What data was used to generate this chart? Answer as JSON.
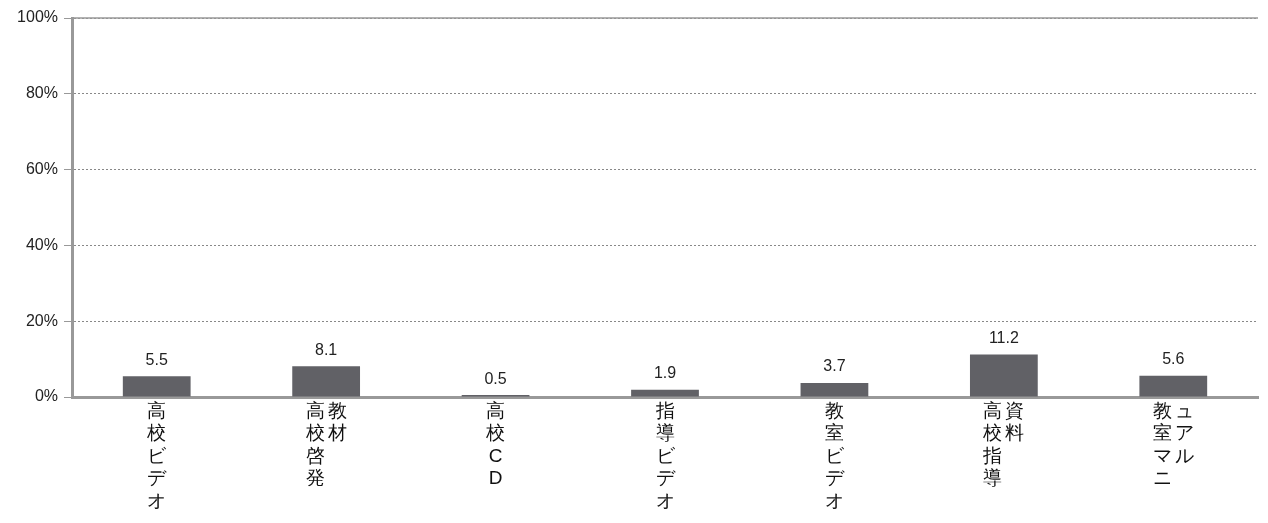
{
  "chart_data": {
    "type": "bar",
    "categories": [
      "高校ビデオ",
      "高校啓発教材",
      "高校CD",
      "指導ビデオ",
      "教室ビデオ",
      "高校指導資料",
      "教室マニュアル"
    ],
    "values": [
      5.5,
      8.1,
      0.5,
      1.9,
      3.7,
      11.2,
      5.6
    ],
    "color": "#616166",
    "ylim": [
      0,
      100
    ],
    "yticks": [
      {
        "value": 0,
        "label": "0%"
      },
      {
        "value": 20,
        "label": "20%"
      },
      {
        "value": 40,
        "label": "40%"
      },
      {
        "value": 60,
        "label": "60%"
      },
      {
        "value": 80,
        "label": "80%"
      },
      {
        "value": 100,
        "label": "100%"
      }
    ],
    "grid": "y",
    "data_labels": true,
    "legend": false
  }
}
